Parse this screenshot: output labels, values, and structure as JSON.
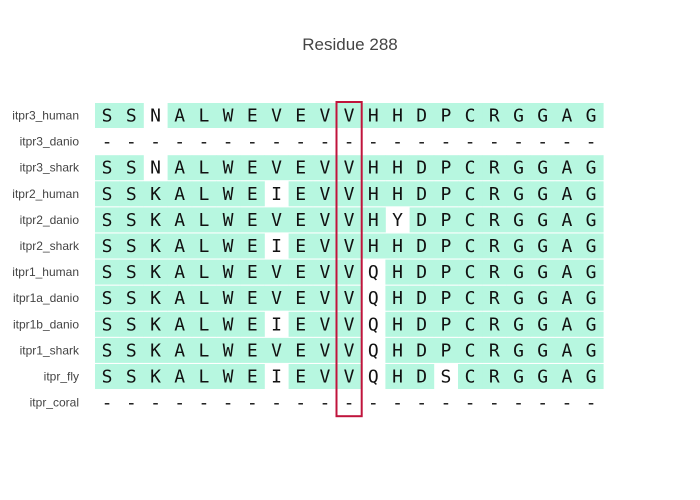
{
  "chart_data": {
    "type": "heatmap",
    "title": "Residue 288",
    "rows": [
      "itpr3_human",
      "itpr3_danio",
      "itpr3_shark",
      "itpr2_human",
      "itpr2_danio",
      "itpr2_shark",
      "itpr1_human",
      "itpr1a_danio",
      "itpr1b_danio",
      "itpr1_shark",
      "itpr_fly",
      "itpr_coral"
    ],
    "sequences": [
      "SSNALWEVEVVHHDPCRGGAG",
      "---------------------",
      "SSNALWEVEVVHHDPCRGGAG",
      "SSKALWEIEVVHHDPCRGGAG",
      "SSKALWEVEVVHYDPCRGGAG",
      "SSKALWEIEVVHHDPCRGGAG",
      "SSKALWEVEVVQHDPCRGGAG",
      "SSKALWEVEVVQHDPCRGGAG",
      "SSKALWEIEVVQHDPCRGGAG",
      "SSKALWEVEVVQHDPCRGGAG",
      "SSKALWEIEVVQHDSCRGGAG",
      "---------------------"
    ],
    "highlight_column": 10,
    "colors": {
      "consensus_fill": "#b7f7e0",
      "highlight_box": "#c0143c",
      "title": "#444444",
      "text": "#111111"
    }
  }
}
